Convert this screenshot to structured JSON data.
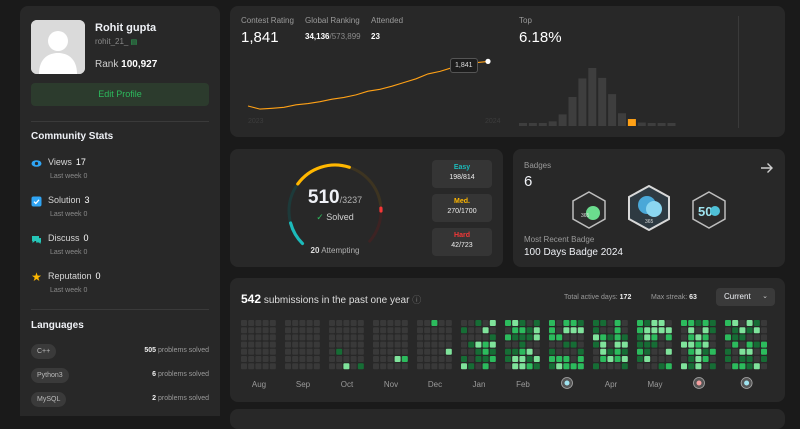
{
  "profile": {
    "name": "Rohit gupta",
    "handle": "rohit_21_",
    "rank_label": "Rank",
    "rank_value": "100,927",
    "edit_label": "Edit Profile"
  },
  "community": {
    "title": "Community Stats",
    "items": [
      {
        "label": "Views",
        "value": "17",
        "sub": "Last week 0",
        "icon": "eye-icon",
        "color": "#2fa4f3"
      },
      {
        "label": "Solution",
        "value": "3",
        "sub": "Last week 0",
        "icon": "check-square-icon",
        "color": "#2fa4f3"
      },
      {
        "label": "Discuss",
        "value": "0",
        "sub": "Last week 0",
        "icon": "chat-icon",
        "color": "#26c6b8"
      },
      {
        "label": "Reputation",
        "value": "0",
        "sub": "Last week 0",
        "icon": "star-icon",
        "color": "#ffb800"
      }
    ]
  },
  "languages": {
    "title": "Languages",
    "items": [
      {
        "name": "C++",
        "count": "505",
        "suffix": "problems solved"
      },
      {
        "name": "Python3",
        "count": "6",
        "suffix": "problems solved"
      },
      {
        "name": "MySQL",
        "count": "2",
        "suffix": "problems solved"
      }
    ]
  },
  "contest": {
    "rating_label": "Contest Rating",
    "rating_value": "1,841",
    "global_label": "Global Ranking",
    "global_value": "34,136",
    "global_total": "/573,899",
    "attended_label": "Attended",
    "attended_value": "23",
    "tooltip": "1,841",
    "x_start": "2023",
    "x_end": "2024",
    "top_label": "Top",
    "top_value": "6.18%",
    "rating_series": [
      1480,
      1455,
      1462,
      1470,
      1490,
      1500,
      1515,
      1535,
      1550,
      1570,
      1600,
      1615,
      1640,
      1670,
      1700,
      1740,
      1760,
      1790,
      1820,
      1830,
      1841
    ],
    "histogram": [
      0.03,
      0.03,
      0.05,
      0.08,
      0.2,
      0.5,
      0.82,
      1.0,
      0.83,
      0.55,
      0.22,
      0.12,
      0.06,
      0.04,
      0.02,
      0.02
    ],
    "histogram_highlight": 11
  },
  "solved": {
    "count": "510",
    "total": "/3237",
    "solved_label": "Solved",
    "attempting_count": "20",
    "attempting_label": "Attempting",
    "levels": [
      {
        "label": "Easy",
        "value": "198/814",
        "color": "#1cbaba"
      },
      {
        "label": "Med.",
        "value": "270/1700",
        "color": "#ffb700"
      },
      {
        "label": "Hard",
        "value": "42/723",
        "color": "#f63737"
      }
    ],
    "fractions": [
      0.388,
      0.529,
      0.082
    ]
  },
  "badges": {
    "label": "Badges",
    "count": "6",
    "recent_label": "Most Recent Badge",
    "recent_name": "100 Days Badge 2024",
    "items": [
      {
        "caption": "365",
        "glyph": "365"
      },
      {
        "caption": "365",
        "glyph": ""
      },
      {
        "caption": "",
        "glyph": "50"
      }
    ]
  },
  "submissions": {
    "count": "542",
    "text": "submissions in the past one year",
    "active_label": "Total active days:",
    "active_value": "172",
    "streak_label": "Max streak:",
    "streak_value": "63",
    "select_value": "Current",
    "months": [
      "Aug",
      "Sep",
      "Oct",
      "Nov",
      "Dec",
      "Jan",
      "Feb",
      "",
      "Apr",
      "May",
      "",
      ""
    ],
    "month_badges": [
      7,
      10,
      11
    ],
    "month_intensity": [
      0.05,
      0.02,
      0.03,
      0.02,
      0.05,
      0.55,
      0.6,
      0.65,
      0.6,
      0.6,
      0.55,
      0.55
    ]
  }
}
